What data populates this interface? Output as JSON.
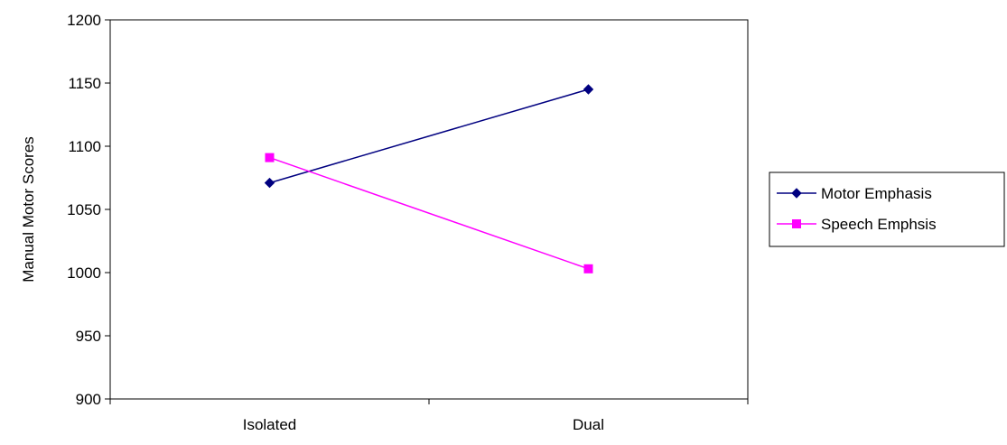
{
  "chart_data": {
    "type": "line",
    "categories": [
      "Isolated",
      "Dual"
    ],
    "series": [
      {
        "name": "Motor Emphasis",
        "values": [
          1071,
          1145
        ],
        "color": "#000080",
        "marker": "diamond"
      },
      {
        "name": "Speech Emphsis",
        "values": [
          1091,
          1003
        ],
        "color": "#ff00ff",
        "marker": "square"
      }
    ],
    "ylabel": "Manual Motor Scores",
    "ylim": [
      900,
      1200
    ],
    "yticks": [
      900,
      950,
      1000,
      1050,
      1100,
      1150,
      1200
    ],
    "grid": false,
    "legend_position": "right"
  }
}
